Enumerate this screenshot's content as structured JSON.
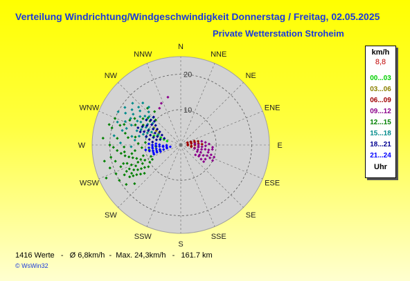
{
  "header": {
    "title": "Verteilung Windrichtung/Windgeschwindigkeit Donnerstag / Freitag, 02.05.2025",
    "subtitle": "Private Wetterstation Stroheim"
  },
  "legend": {
    "unit": "km/h",
    "average": "8,8",
    "entries": [
      {
        "label": "00...03",
        "color": "#00d000"
      },
      {
        "label": "03...06",
        "color": "#8b8000"
      },
      {
        "label": "06...09",
        "color": "#a00000"
      },
      {
        "label": "09...12",
        "color": "#8b008b"
      },
      {
        "label": "12...15",
        "color": "#008000"
      },
      {
        "label": "15...18",
        "color": "#008b8b"
      },
      {
        "label": "18...21",
        "color": "#000090"
      },
      {
        "label": "21...24",
        "color": "#0000ff"
      }
    ],
    "footer": "Uhr"
  },
  "footer": {
    "stats": "1416 Werte   -   Ø 6,8km/h  -  Max. 24,3km/h   -   161.7 km",
    "credit": "© WsWin32"
  },
  "chart_data": {
    "type": "scatter",
    "projection": "polar",
    "directions": [
      "N",
      "NNE",
      "NE",
      "ENE",
      "E",
      "ESE",
      "SE",
      "SSE",
      "S",
      "SSW",
      "SW",
      "WSW",
      "W",
      "WNW",
      "NW",
      "NNW"
    ],
    "rlim": [
      0,
      25
    ],
    "r_ticks": [
      "10",
      "20"
    ],
    "r_tick_values": [
      10,
      20
    ],
    "grid": true,
    "series": [
      {
        "name": "00...03",
        "color": "#00d000",
        "points": [
          [
            286,
            4
          ],
          [
            288,
            5
          ],
          [
            290,
            6
          ],
          [
            292,
            7
          ],
          [
            289,
            8
          ],
          [
            285,
            6
          ]
        ]
      },
      {
        "name": "03...06",
        "color": "#8b8000",
        "points": [
          [
            300,
            8
          ],
          [
            303,
            9
          ],
          [
            298,
            7
          ]
        ]
      },
      {
        "name": "06...09",
        "color": "#a00000",
        "points": [
          [
            70,
            2
          ],
          [
            75,
            3
          ],
          [
            80,
            4
          ],
          [
            85,
            5
          ],
          [
            90,
            4
          ],
          [
            95,
            3
          ],
          [
            100,
            3
          ],
          [
            78,
            5
          ],
          [
            88,
            6
          ],
          [
            92,
            2
          ],
          [
            82,
            3
          ],
          [
            74,
            4
          ],
          [
            96,
            5
          ],
          [
            84,
            2
          ],
          [
            102,
            4
          ],
          [
            72,
            3
          ]
        ]
      },
      {
        "name": "09...12",
        "color": "#8b008b",
        "points": [
          [
            85,
            4
          ],
          [
            90,
            5
          ],
          [
            95,
            6
          ],
          [
            100,
            7
          ],
          [
            105,
            8
          ],
          [
            110,
            6
          ],
          [
            115,
            7
          ],
          [
            120,
            8
          ],
          [
            98,
            9
          ],
          [
            108,
            9
          ],
          [
            112,
            5
          ],
          [
            102,
            6
          ],
          [
            118,
            6
          ],
          [
            125,
            7
          ],
          [
            92,
            7
          ],
          [
            88,
            8
          ],
          [
            97,
            5
          ],
          [
            106,
            5
          ],
          [
            114,
            9
          ],
          [
            122,
            6
          ],
          [
            80,
            6
          ],
          [
            84,
            7
          ],
          [
            126,
            8
          ],
          [
            110,
            10
          ],
          [
            100,
            8
          ],
          [
            94,
            9
          ],
          [
            116,
            10
          ],
          [
            104,
            4
          ],
          [
            124,
            5
          ],
          [
            112,
            8
          ],
          [
            330,
            12
          ],
          [
            335,
            13
          ],
          [
            345,
            14
          ]
        ]
      },
      {
        "name": "12...15",
        "color": "#008000",
        "points": [
          [
            255,
            6
          ],
          [
            258,
            8
          ],
          [
            262,
            10
          ],
          [
            250,
            12
          ],
          [
            245,
            14
          ],
          [
            240,
            16
          ],
          [
            248,
            15
          ],
          [
            252,
            17
          ],
          [
            256,
            19
          ],
          [
            246,
            20
          ],
          [
            242,
            18
          ],
          [
            238,
            17
          ],
          [
            260,
            14
          ],
          [
            265,
            18
          ],
          [
            270,
            20
          ],
          [
            275,
            22
          ],
          [
            268,
            16
          ],
          [
            244,
            12
          ],
          [
            236,
            15
          ],
          [
            232,
            13
          ],
          [
            249,
            9
          ],
          [
            254,
            11
          ],
          [
            263,
            13
          ],
          [
            272,
            12
          ],
          [
            278,
            15
          ],
          [
            282,
            16
          ],
          [
            288,
            18
          ],
          [
            292,
            20
          ],
          [
            286,
            21
          ],
          [
            258,
            22
          ],
          [
            246,
            23
          ],
          [
            240,
            20
          ],
          [
            234,
            19
          ],
          [
            230,
            17
          ],
          [
            262,
            17
          ],
          [
            250,
            18
          ],
          [
            266,
            11
          ],
          [
            243,
            9
          ],
          [
            257,
            15
          ],
          [
            253,
            13
          ],
          [
            247,
            11
          ],
          [
            241,
            10
          ],
          [
            239,
            13
          ],
          [
            236,
            11
          ],
          [
            244,
            17
          ],
          [
            252,
            21
          ],
          [
            260,
            20
          ],
          [
            268,
            19
          ],
          [
            276,
            18
          ],
          [
            284,
            20
          ],
          [
            290,
            17
          ],
          [
            296,
            16
          ],
          [
            300,
            15
          ],
          [
            305,
            13
          ],
          [
            310,
            12
          ],
          [
            318,
            14
          ],
          [
            322,
            12
          ],
          [
            315,
            10
          ],
          [
            308,
            11
          ],
          [
            298,
            12
          ],
          [
            294,
            14
          ],
          [
            280,
            13
          ],
          [
            274,
            10
          ],
          [
            270,
            8
          ],
          [
            266,
            7
          ],
          [
            261,
            9
          ],
          [
            240,
            14
          ],
          [
            237,
            16
          ],
          [
            245,
            16
          ],
          [
            251,
            16
          ],
          [
            255,
            14
          ],
          [
            259,
            16
          ],
          [
            263,
            16
          ],
          [
            248,
            13
          ],
          [
            242,
            15
          ],
          [
            238,
            12
          ],
          [
            234,
            14
          ]
        ]
      },
      {
        "name": "15...18",
        "color": "#008b8b",
        "points": [
          [
            285,
            8
          ],
          [
            290,
            10
          ],
          [
            295,
            12
          ],
          [
            300,
            13
          ],
          [
            305,
            14
          ],
          [
            310,
            15
          ],
          [
            298,
            16
          ],
          [
            292,
            15
          ],
          [
            288,
            13
          ],
          [
            302,
            11
          ],
          [
            308,
            10
          ],
          [
            312,
            12
          ],
          [
            316,
            13
          ],
          [
            320,
            14
          ],
          [
            296,
            10
          ],
          [
            294,
            9
          ],
          [
            286,
            11
          ],
          [
            282,
            12
          ],
          [
            280,
            14
          ],
          [
            300,
            18
          ],
          [
            306,
            17
          ],
          [
            312,
            16
          ],
          [
            318,
            16
          ],
          [
            304,
            19
          ],
          [
            298,
            20
          ],
          [
            290,
            19
          ],
          [
            284,
            17
          ],
          [
            278,
            19
          ],
          [
            272,
            17
          ],
          [
            268,
            14
          ],
          [
            276,
            13
          ],
          [
            283,
            10
          ],
          [
            287,
            16
          ],
          [
            293,
            17
          ],
          [
            299,
            14
          ],
          [
            303,
            16
          ],
          [
            309,
            13
          ],
          [
            315,
            11
          ],
          [
            297,
            11
          ],
          [
            291,
            12
          ],
          [
            307,
            12
          ],
          [
            311,
            18
          ],
          [
            301,
            9
          ],
          [
            295,
            7
          ]
        ]
      },
      {
        "name": "18...21",
        "color": "#000090",
        "points": [
          [
            285,
            6
          ],
          [
            290,
            7
          ],
          [
            295,
            8
          ],
          [
            300,
            9
          ],
          [
            305,
            10
          ],
          [
            310,
            11
          ],
          [
            298,
            6
          ],
          [
            292,
            5
          ],
          [
            288,
            9
          ],
          [
            302,
            7
          ],
          [
            294,
            10
          ],
          [
            282,
            7
          ],
          [
            286,
            8
          ],
          [
            304,
            8
          ],
          [
            308,
            9
          ],
          [
            296,
            12
          ],
          [
            290,
            11
          ],
          [
            284,
            10
          ],
          [
            280,
            9
          ],
          [
            276,
            8
          ],
          [
            300,
            11
          ],
          [
            306,
            12
          ],
          [
            312,
            10
          ],
          [
            316,
            11
          ],
          [
            292,
            13
          ],
          [
            288,
            12
          ]
        ]
      },
      {
        "name": "21...24",
        "color": "#0000ff",
        "points": [
          [
            260,
            3
          ],
          [
            262,
            4
          ],
          [
            264,
            5
          ],
          [
            266,
            6
          ],
          [
            268,
            7
          ],
          [
            270,
            8
          ],
          [
            258,
            6
          ],
          [
            256,
            7
          ],
          [
            254,
            8
          ],
          [
            252,
            6
          ],
          [
            263,
            8
          ],
          [
            265,
            9
          ],
          [
            261,
            7
          ],
          [
            267,
            5
          ],
          [
            269,
            4
          ],
          [
            255,
            5
          ],
          [
            257,
            4
          ],
          [
            271,
            6
          ],
          [
            273,
            7
          ],
          [
            259,
            9
          ],
          [
            253,
            7
          ],
          [
            251,
            8
          ],
          [
            272,
            9
          ],
          [
            262,
            10
          ],
          [
            258,
            8
          ],
          [
            266,
            8
          ]
        ]
      }
    ]
  }
}
